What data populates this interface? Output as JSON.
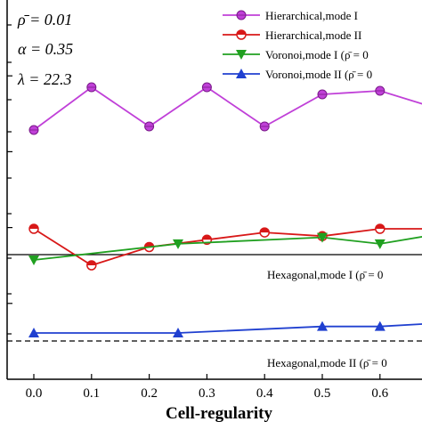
{
  "chart_data": {
    "type": "line",
    "xlabel": "Cell-regularity",
    "ylabel": "",
    "x_ticks": [
      "0.0",
      "0.1",
      "0.2",
      "0.3",
      "0.4",
      "0.5",
      "0.6"
    ],
    "xlim": [
      -0.04,
      0.68
    ],
    "ylim": [
      0,
      100
    ],
    "grid": false,
    "legend_position": "top-right",
    "parameters": [
      "ρ̄ = 0.01",
      "α = 0.35",
      "λ = 22.3"
    ],
    "series": [
      {
        "name": "Hierarchical,mode I",
        "color": "#c040d8",
        "marker": "circle",
        "x": [
          0.0,
          0.1,
          0.2,
          0.3,
          0.4,
          0.5,
          0.6,
          0.7
        ],
        "y": [
          77,
          89,
          78,
          89,
          78,
          87,
          88,
          83
        ]
      },
      {
        "name": "Hierarchical,mode II",
        "color": "#d81818",
        "marker": "half-circle",
        "x": [
          0.0,
          0.1,
          0.2,
          0.3,
          0.4,
          0.5,
          0.6,
          0.7
        ],
        "y": [
          49,
          39,
          44,
          46,
          48,
          47,
          49,
          49
        ]
      },
      {
        "name": "Voronoi,mode I (ρ̄ = 0",
        "color": "#20a020",
        "marker": "triangle-down",
        "x": [
          0.0,
          0.25,
          0.5,
          0.6,
          0.7
        ],
        "y": [
          40,
          45,
          47,
          45,
          48
        ]
      },
      {
        "name": "Voronoi,mode II (ρ̄ = 0",
        "color": "#2040d0",
        "marker": "triangle-up",
        "x": [
          0.0,
          0.25,
          0.5,
          0.6,
          0.7
        ],
        "y": [
          22,
          22,
          24,
          24,
          25
        ]
      }
    ],
    "reference_lines": [
      {
        "label": "Hexagonal,mode I (ρ̄ = 0",
        "y": 42,
        "style": "solid"
      },
      {
        "label": "Hexagonal,mode II (ρ̄ = 0",
        "y": 20,
        "style": "dashed"
      }
    ]
  }
}
